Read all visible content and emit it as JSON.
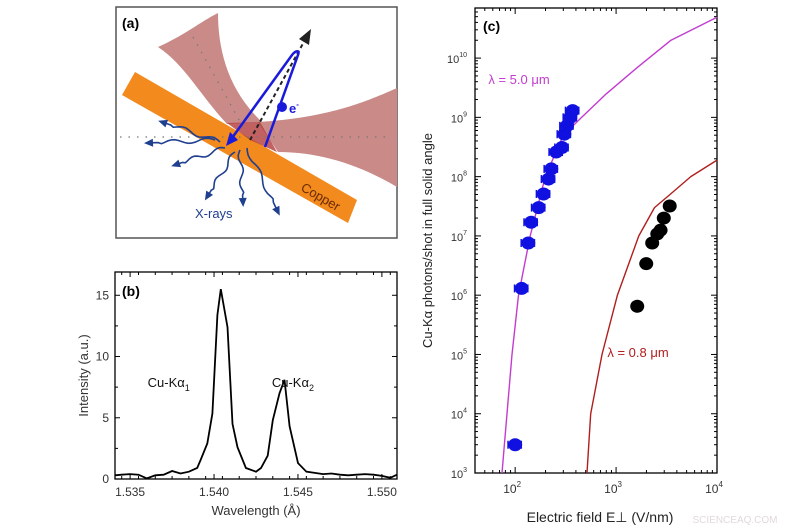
{
  "panel_a": {
    "label": "(a)",
    "electron_label": "e",
    "electron_sup": "-",
    "xrays_label": "X-rays",
    "copper_label": "Copper",
    "colors": {
      "copper": "#f28a1e",
      "laser": "#c98a88",
      "laser_overlap": "#b23a3a",
      "electron": "#1a1adb",
      "xrays": "#1f3f8f"
    }
  },
  "chart_data": [
    {
      "type": "line",
      "panel_label": "(b)",
      "xlabel": "Wavelength (Å)",
      "ylabel": "Intensity (a.u.)",
      "xlim": [
        1.5341,
        1.5509
      ],
      "ylim": [
        0,
        16.9
      ],
      "xticks": [
        "1.535",
        "1.540",
        "1.545",
        "1.550"
      ],
      "yticks": [
        "0",
        "5",
        "10",
        "15"
      ],
      "grid": false,
      "color": "#000000",
      "annotations": [
        {
          "text": "Cu-Kα",
          "sub": "1",
          "x": 1.5373,
          "y": 7.5
        },
        {
          "text": "Cu-Kα",
          "sub": "2",
          "x": 1.5447,
          "y": 7.5
        }
      ],
      "x": [
        1.5341,
        1.5345,
        1.535,
        1.5355,
        1.536,
        1.5365,
        1.537,
        1.5375,
        1.538,
        1.5385,
        1.539,
        1.5392,
        1.5396,
        1.5399,
        1.5402,
        1.5404,
        1.5408,
        1.5411,
        1.5414,
        1.5419,
        1.5425,
        1.5428,
        1.5432,
        1.5435,
        1.5439,
        1.5442,
        1.5445,
        1.545,
        1.5455,
        1.546,
        1.5465,
        1.547,
        1.5475,
        1.548,
        1.5485,
        1.549,
        1.5495,
        1.55,
        1.5505,
        1.5509
      ],
      "y": [
        0.3,
        0.35,
        0.4,
        0.35,
        0.05,
        0.3,
        0.35,
        0.65,
        0.45,
        0.6,
        0.9,
        1.55,
        2.9,
        5.35,
        13.4,
        15.5,
        12.4,
        4.5,
        2.6,
        0.9,
        0.6,
        0.9,
        1.9,
        4.8,
        7.0,
        8.1,
        4.3,
        1.3,
        0.6,
        0.5,
        0.4,
        0.45,
        0.35,
        0.3,
        0.35,
        0.4,
        0.35,
        0.25,
        0.1,
        0.35
      ]
    },
    {
      "type": "scatter",
      "panel_label": "(c)",
      "xlabel": "Electric field E⊥ (V/nm)",
      "ylabel": "Cu-Kα photons/shot in full solid angle",
      "xscale": "log",
      "yscale": "log",
      "xlim": [
        40,
        10000
      ],
      "ylim": [
        1000,
        70000000000.0
      ],
      "xticks": [
        {
          "base": "10",
          "exp": "2"
        },
        {
          "base": "10",
          "exp": "3"
        },
        {
          "base": "10",
          "exp": "4"
        }
      ],
      "yticks": [
        {
          "base": "10",
          "exp": "3"
        },
        {
          "base": "10",
          "exp": "4"
        },
        {
          "base": "10",
          "exp": "5"
        },
        {
          "base": "10",
          "exp": "6"
        },
        {
          "base": "10",
          "exp": "7"
        },
        {
          "base": "10",
          "exp": "8"
        },
        {
          "base": "10",
          "exp": "9"
        },
        {
          "base": "10",
          "exp": "10"
        }
      ],
      "grid": false,
      "curves": [
        {
          "label": "λ = 5.0 μm",
          "color": "#c23ccf",
          "x": [
            74,
            83,
            93,
            108,
            141,
            199,
            300,
            455,
            800,
            1630,
            3500,
            10000
          ],
          "y": [
            1000.0,
            10000.0,
            100000.0,
            1000000.0,
            10000000.0,
            100000000.0,
            500000000.0,
            1000000000.0,
            2500000000.0,
            7000000000.0,
            20000000000.0,
            49000000000.0
          ]
        },
        {
          "label": "λ = 0.8 μm",
          "color": "#b01e1e",
          "x": [
            515,
            560,
            725,
            1030,
            1680,
            2400,
            3470,
            5500,
            10000
          ],
          "y": [
            1000.0,
            10000.0,
            100000.0,
            1000000.0,
            10000000.0,
            30000000.0,
            51000000.0,
            100000000.0,
            190000000.0
          ]
        }
      ],
      "series": [
        {
          "color": "#1010e0",
          "xerr_fraction": 0.15,
          "x": [
            100,
            116,
            135,
            144,
            171,
            191,
            214,
            228,
            255,
            291,
            307,
            326,
            352,
            371
          ],
          "y": [
            3000.0,
            1300000.0,
            7600000.0,
            17000000.0,
            30000000.0,
            51000000.0,
            91000000.0,
            135000000.0,
            260000000.0,
            310000000.0,
            520000000.0,
            720000000.0,
            1000000000.0,
            1300000000.0
          ]
        },
        {
          "color": "#000000",
          "x": [
            1620,
            1990,
            2280,
            2560,
            2760,
            2970,
            3400
          ],
          "y": [
            650000.0,
            3400000.0,
            7600000.0,
            10800000.0,
            12500000.0,
            20000000.0,
            32000000.0
          ]
        }
      ]
    }
  ],
  "watermark": "SCIENCEAQ.COM"
}
